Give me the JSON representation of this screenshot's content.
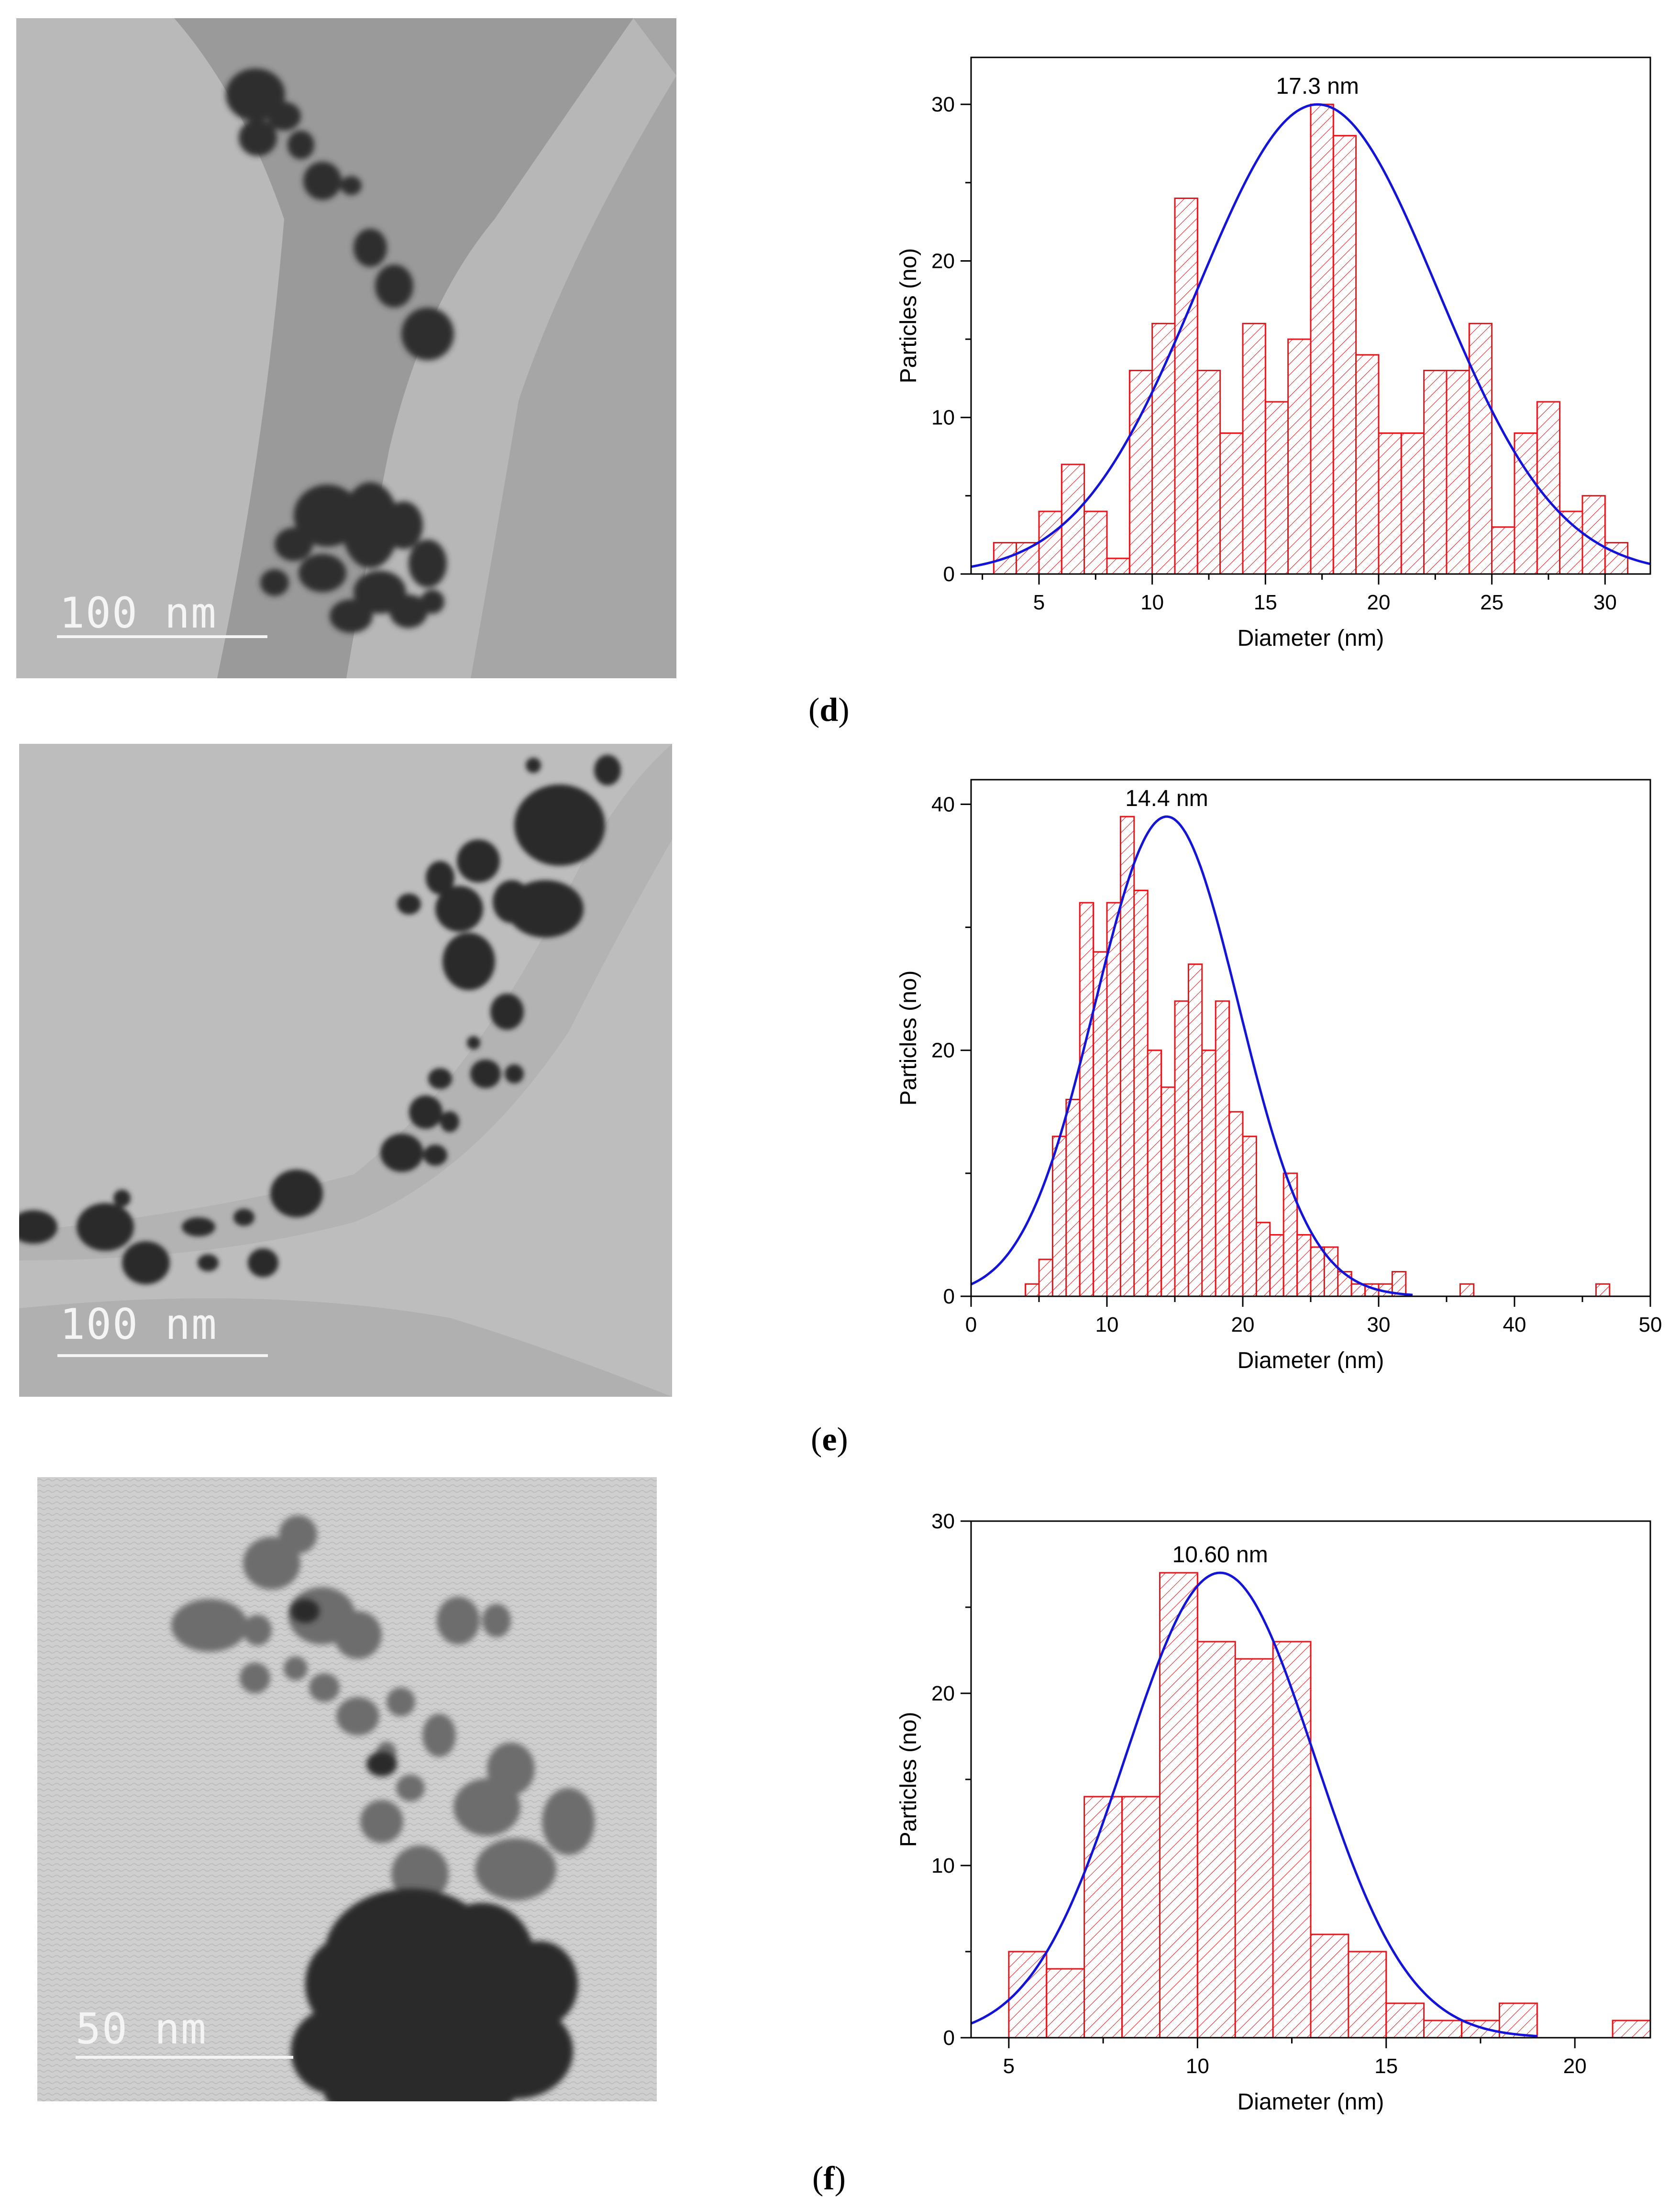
{
  "panels": [
    {
      "id": "d",
      "letter": "d",
      "scale_label": "100 nm"
    },
    {
      "id": "e",
      "letter": "e",
      "scale_label": "100 nm"
    },
    {
      "id": "f",
      "letter": "f",
      "scale_label": "50 nm"
    }
  ],
  "colors": {
    "bar_stroke": "#e8141b",
    "hatch": "#e8141b",
    "fit_curve": "#1414d9",
    "axis": "#000000"
  },
  "chart_data": [
    {
      "type": "bar",
      "xlabel": "Diameter (nm)",
      "ylabel": "Particles (no)",
      "annotation": "17.3 nm",
      "xlim": [
        2,
        32
      ],
      "ylim": [
        0,
        33
      ],
      "xticks": [
        5,
        10,
        15,
        20,
        25,
        30
      ],
      "yticks": [
        0,
        10,
        20,
        30
      ],
      "bin_width": 1,
      "bin_starts": [
        3,
        4,
        5,
        6,
        7,
        8,
        9,
        10,
        11,
        12,
        13,
        14,
        15,
        16,
        17,
        18,
        19,
        20,
        21,
        22,
        23,
        24,
        25,
        26,
        27,
        28,
        29,
        30
      ],
      "values": [
        2,
        2,
        4,
        7,
        4,
        1,
        13,
        16,
        24,
        13,
        9,
        16,
        11,
        15,
        30,
        28,
        14,
        9,
        9,
        13,
        13,
        16,
        3,
        9,
        11,
        4,
        5,
        2
      ],
      "fit": {
        "type": "gaussian",
        "peak": 17.3,
        "amplitude": 30,
        "sigma": 5.3,
        "x_range": [
          2,
          32
        ]
      }
    },
    {
      "type": "bar",
      "xlabel": "Diameter (nm)",
      "ylabel": "Particles (no)",
      "annotation": "14.4 nm",
      "xlim": [
        0,
        50
      ],
      "ylim": [
        0,
        42
      ],
      "xticks": [
        0,
        10,
        20,
        30,
        40,
        50
      ],
      "yticks": [
        0,
        20,
        40
      ],
      "bin_width": 1,
      "bin_starts": [
        4,
        5,
        6,
        7,
        8,
        9,
        10,
        11,
        12,
        13,
        14,
        15,
        16,
        17,
        18,
        19,
        20,
        21,
        22,
        23,
        24,
        25,
        26,
        27,
        28,
        29,
        30,
        31,
        36,
        46
      ],
      "values": [
        1,
        3,
        13,
        16,
        32,
        28,
        32,
        39,
        33,
        20,
        17,
        24,
        27,
        20,
        24,
        15,
        13,
        6,
        5,
        10,
        5,
        4,
        4,
        2,
        1,
        1,
        1,
        2,
        1,
        1
      ],
      "fit": {
        "type": "gaussian",
        "peak": 14.4,
        "amplitude": 39,
        "sigma": 5.3,
        "x_range": [
          0,
          32.5
        ]
      }
    },
    {
      "type": "bar",
      "xlabel": "Diameter (nm)",
      "ylabel": "Particles (no)",
      "annotation": "10.60 nm",
      "xlim": [
        4,
        22
      ],
      "ylim": [
        0,
        30
      ],
      "xticks": [
        5,
        10,
        15,
        20
      ],
      "yticks": [
        0,
        10,
        20,
        30
      ],
      "bin_width": 1,
      "bin_starts": [
        5,
        6,
        7,
        8,
        9,
        10,
        11,
        12,
        13,
        14,
        15,
        16,
        17,
        18,
        21
      ],
      "values": [
        5,
        4,
        14,
        14,
        27,
        23,
        22,
        23,
        6,
        5,
        2,
        1,
        1,
        2,
        1
      ],
      "fit": {
        "type": "gaussian",
        "peak": 10.6,
        "amplitude": 27,
        "sigma": 2.5,
        "x_range": [
          4,
          19
        ]
      }
    }
  ]
}
